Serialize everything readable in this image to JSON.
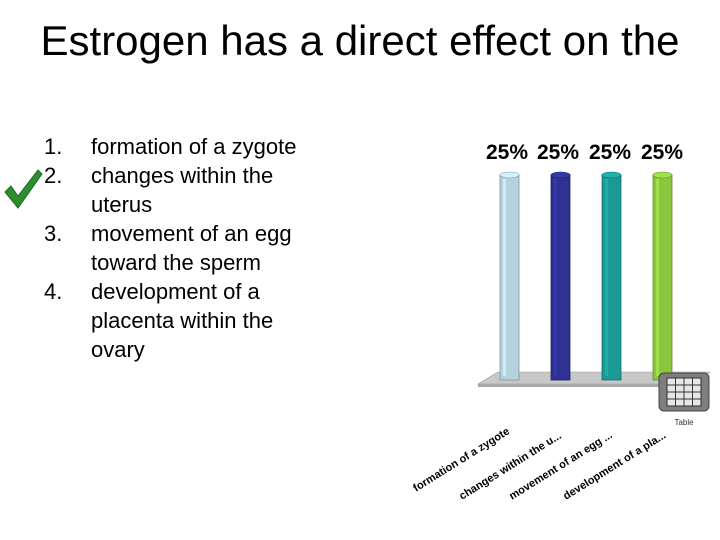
{
  "slide": {
    "title": "Estrogen has a direct effect on the",
    "answers": [
      {
        "number": "1.",
        "text": "formation of a zygote"
      },
      {
        "number": "2.",
        "text": "changes within the uterus",
        "correct": true
      },
      {
        "number": "3.",
        "text": "movement of an egg toward the sperm"
      },
      {
        "number": "4.",
        "text": "development of a placenta within the ovary"
      }
    ],
    "table_label": "Table",
    "icons": {
      "check": "checkmark-icon",
      "table": "table-icon"
    }
  },
  "chart_data": {
    "type": "bar",
    "categories": [
      "formation of a zygote",
      "changes within the u...",
      "movement of an egg ...",
      "development of a pla..."
    ],
    "values": [
      25,
      25,
      25,
      25
    ],
    "value_labels": [
      "25%",
      "25%",
      "25%",
      "25%"
    ],
    "colors": [
      "#b4d3df",
      "#2e3192",
      "#1b9a95",
      "#8cc63f"
    ],
    "ylim": [
      0,
      25
    ],
    "grid": false,
    "legend": "none"
  }
}
